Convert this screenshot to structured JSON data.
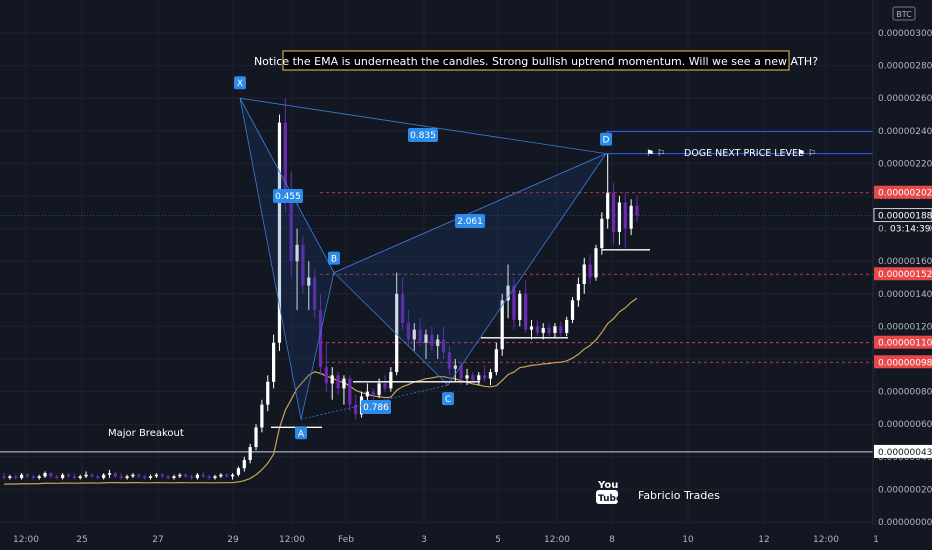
{
  "currency_badge": "BTC",
  "annotation": "Notice the EMA is underneath the candles. Strong bullish uptrend momentum. Will we see a new ATH?",
  "breakout_label": "Major Breakout",
  "target_label": "DOGE NEXT PRICE LEVEL",
  "watermark": {
    "youtube": "You",
    "tube": "Tube",
    "author": "Fabricio Trades"
  },
  "colors": {
    "bull": "#ffffff",
    "bear": "#6a2bb0",
    "ema": "#c8a25a",
    "pattern": "#3d7bd9",
    "level": "#e8484a",
    "price": "#2962ff"
  },
  "chart_data": {
    "type": "candlestick",
    "ylim": [
      0.0,
      3.15e-06
    ],
    "y_ticks": [
      "0.00000300",
      "0.00000280",
      "0.00000260",
      "0.00000240",
      "0.00000220",
      "0.00000200",
      "0.00000180",
      "0.00000160",
      "0.00000140",
      "0.00000120",
      "0.00000100",
      "0.00000080",
      "0.00000060",
      "0.00000040",
      "0.00000020",
      "0.00000000"
    ],
    "x_ticks": [
      "12:00",
      "25",
      "27",
      "29",
      "12:00",
      "Feb",
      "3",
      "5",
      "12:00",
      "8",
      "10",
      "12",
      "12:00",
      "1"
    ],
    "levels": [
      {
        "value": 2.02e-06,
        "label": "0.00000202",
        "style": "dashed-red"
      },
      {
        "value": 1.52e-06,
        "label": "0.00000152",
        "style": "dashed-red"
      },
      {
        "value": 1.1e-06,
        "label": "0.00000110",
        "style": "dashed-red"
      },
      {
        "value": 9.8e-07,
        "label": "0.00000098",
        "style": "dashed-red"
      },
      {
        "value": 4.3e-07,
        "label": "0.00000043",
        "style": "solid-white"
      }
    ],
    "current_price": {
      "value": 1.88e-06,
      "label": "0.00000188",
      "countdown": "03:14:39"
    },
    "pattern_points": [
      {
        "name": "X",
        "value": 2.6e-06
      },
      {
        "name": "A",
        "value": 6.3e-07
      },
      {
        "name": "B",
        "value": 1.53e-06
      },
      {
        "name": "C",
        "value": 8.4e-07
      },
      {
        "name": "D",
        "value": 2.26e-06
      }
    ],
    "ratios": [
      {
        "label": "0.455",
        "between": [
          "X",
          "B"
        ]
      },
      {
        "label": "0.786",
        "between": [
          "A",
          "C"
        ]
      },
      {
        "label": "2.061",
        "between": [
          "B",
          "D"
        ]
      },
      {
        "label": "0.835",
        "between": [
          "X",
          "D"
        ]
      }
    ],
    "candles": [
      [
        2.8e-07,
        3e-07,
        2.6e-07,
        2.7e-07
      ],
      [
        2.7e-07,
        2.9e-07,
        2.6e-07,
        2.8e-07
      ],
      [
        2.8e-07,
        2.9e-07,
        2.6e-07,
        2.7e-07
      ],
      [
        2.7e-07,
        3e-07,
        2.6e-07,
        2.9e-07
      ],
      [
        2.9e-07,
        3e-07,
        2.7e-07,
        2.8e-07
      ],
      [
        2.8e-07,
        2.9e-07,
        2.6e-07,
        2.7e-07
      ],
      [
        2.7e-07,
        2.9e-07,
        2.6e-07,
        2.8e-07
      ],
      [
        2.8e-07,
        3.1e-07,
        2.7e-07,
        3e-07
      ],
      [
        3e-07,
        3.1e-07,
        2.7e-07,
        2.8e-07
      ],
      [
        2.8e-07,
        2.9e-07,
        2.6e-07,
        2.7e-07
      ],
      [
        2.7e-07,
        3e-07,
        2.6e-07,
        2.9e-07
      ],
      [
        2.9e-07,
        3e-07,
        2.7e-07,
        2.8e-07
      ],
      [
        2.8e-07,
        3e-07,
        2.6e-07,
        2.7e-07
      ],
      [
        2.7e-07,
        2.9e-07,
        2.6e-07,
        2.8e-07
      ],
      [
        2.8e-07,
        3.1e-07,
        2.7e-07,
        2.9e-07
      ],
      [
        2.9e-07,
        3e-07,
        2.7e-07,
        2.8e-07
      ],
      [
        2.8e-07,
        2.9e-07,
        2.6e-07,
        2.7e-07
      ],
      [
        2.7e-07,
        3e-07,
        2.6e-07,
        2.9e-07
      ],
      [
        2.9e-07,
        3.2e-07,
        2.7e-07,
        3e-07
      ],
      [
        3e-07,
        3.1e-07,
        2.7e-07,
        2.8e-07
      ],
      [
        2.8e-07,
        3e-07,
        2.6e-07,
        2.7e-07
      ],
      [
        2.7e-07,
        2.9e-07,
        2.6e-07,
        2.8e-07
      ],
      [
        2.8e-07,
        3e-07,
        2.7e-07,
        2.9e-07
      ],
      [
        2.9e-07,
        3e-07,
        2.7e-07,
        2.8e-07
      ],
      [
        2.8e-07,
        2.9e-07,
        2.6e-07,
        2.7e-07
      ],
      [
        2.7e-07,
        2.9e-07,
        2.6e-07,
        2.8e-07
      ],
      [
        2.8e-07,
        3e-07,
        2.7e-07,
        2.9e-07
      ],
      [
        2.9e-07,
        3e-07,
        2.7e-07,
        2.8e-07
      ],
      [
        2.8e-07,
        2.9e-07,
        2.6e-07,
        2.7e-07
      ],
      [
        2.7e-07,
        2.9e-07,
        2.6e-07,
        2.8e-07
      ],
      [
        2.8e-07,
        3e-07,
        2.7e-07,
        2.9e-07
      ],
      [
        2.9e-07,
        3e-07,
        2.7e-07,
        2.8e-07
      ],
      [
        2.8e-07,
        2.9e-07,
        2.6e-07,
        2.7e-07
      ],
      [
        2.7e-07,
        3e-07,
        2.6e-07,
        2.9e-07
      ],
      [
        2.9e-07,
        3.1e-07,
        2.7e-07,
        2.8e-07
      ],
      [
        2.8e-07,
        2.9e-07,
        2.6e-07,
        2.7e-07
      ],
      [
        2.7e-07,
        2.9e-07,
        2.6e-07,
        2.8e-07
      ],
      [
        2.8e-07,
        3e-07,
        2.7e-07,
        2.9e-07
      ],
      [
        2.9e-07,
        3e-07,
        2.7e-07,
        2.8e-07
      ],
      [
        2.8e-07,
        3e-07,
        2.6e-07,
        2.9e-07
      ],
      [
        2.9e-07,
        3.4e-07,
        2.8e-07,
        3.3e-07
      ],
      [
        3.3e-07,
        4e-07,
        3.1e-07,
        3.8e-07
      ],
      [
        3.8e-07,
        4.8e-07,
        3.6e-07,
        4.6e-07
      ],
      [
        4.6e-07,
        6e-07,
        4.4e-07,
        5.8e-07
      ],
      [
        5.8e-07,
        7.5e-07,
        5.5e-07,
        7.2e-07
      ],
      [
        7.2e-07,
        9e-07,
        6.8e-07,
        8.6e-07
      ],
      [
        8.6e-07,
        1.15e-06,
        8.2e-07,
        1.1e-06
      ],
      [
        1.1e-06,
        2.5e-06,
        1.05e-06,
        2.45e-06
      ],
      [
        2.45e-06,
        2.6e-06,
        1.9e-06,
        2e-06
      ],
      [
        2e-06,
        2.15e-06,
        1.5e-06,
        1.6e-06
      ],
      [
        1.6e-06,
        1.8e-06,
        1.3e-06,
        1.7e-06
      ],
      [
        1.7e-06,
        1.75e-06,
        1.4e-06,
        1.45e-06
      ],
      [
        1.45e-06,
        1.6e-06,
        1.3e-06,
        1.5e-06
      ],
      [
        1.5e-06,
        1.55e-06,
        1.25e-06,
        1.3e-06
      ],
      [
        1.3e-06,
        1.4e-06,
        9e-07,
        9.5e-07
      ],
      [
        9.5e-07,
        1.1e-06,
        8e-07,
        8.5e-07
      ],
      [
        8.5e-07,
        9.5e-07,
        7.5e-07,
        9e-07
      ],
      [
        9e-07,
        9.2e-07,
        7.8e-07,
        8.2e-07
      ],
      [
        8.2e-07,
        9e-07,
        7.2e-07,
        8.8e-07
      ],
      [
        8.8e-07,
        9e-07,
        6.8e-07,
        7.2e-07
      ],
      [
        7.2e-07,
        7.8e-07,
        6.3e-07,
        6.6e-07
      ],
      [
        6.6e-07,
        8e-07,
        6.4e-07,
        7.7e-07
      ],
      [
        7.7e-07,
        8.5e-07,
        7.2e-07,
        8e-07
      ],
      [
        8e-07,
        8.2e-07,
        7.4e-07,
        7.8e-07
      ],
      [
        7.8e-07,
        8.8e-07,
        7.6e-07,
        8.5e-07
      ],
      [
        8.5e-07,
        9e-07,
        8e-07,
        8.2e-07
      ],
      [
        8.2e-07,
        9.5e-07,
        8e-07,
        9.2e-07
      ],
      [
        9.2e-07,
        1.53e-06,
        9e-07,
        1.4e-06
      ],
      [
        1.4e-06,
        1.5e-06,
        1.18e-06,
        1.22e-06
      ],
      [
        1.22e-06,
        1.3e-06,
        1.08e-06,
        1.12e-06
      ],
      [
        1.12e-06,
        1.22e-06,
        1.05e-06,
        1.18e-06
      ],
      [
        1.18e-06,
        1.25e-06,
        1.08e-06,
        1.1e-06
      ],
      [
        1.1e-06,
        1.18e-06,
        1e-06,
        1.15e-06
      ],
      [
        1.15e-06,
        1.2e-06,
        1.05e-06,
        1.08e-06
      ],
      [
        1.08e-06,
        1.15e-06,
        1e-06,
        1.12e-06
      ],
      [
        1.12e-06,
        1.2e-06,
        1e-06,
        1.04e-06
      ],
      [
        1.04e-06,
        1.08e-06,
        9e-07,
        9.4e-07
      ],
      [
        9.4e-07,
        1e-06,
        8.6e-07,
        9.6e-07
      ],
      [
        9.6e-07,
        9.8e-07,
        8.4e-07,
        8.8e-07
      ],
      [
        8.8e-07,
        9.4e-07,
        8.4e-07,
        9e-07
      ],
      [
        9e-07,
        9.2e-07,
        8.5e-07,
        8.7e-07
      ],
      [
        8.7e-07,
        9.2e-07,
        8.4e-07,
        9e-07
      ],
      [
        9e-07,
        9.6e-07,
        8.6e-07,
        8.8e-07
      ],
      [
        8.8e-07,
        9.4e-07,
        8.4e-07,
        9.2e-07
      ],
      [
        9.2e-07,
        1.1e-06,
        9e-07,
        1.06e-06
      ],
      [
        1.06e-06,
        1.4e-06,
        1.02e-06,
        1.36e-06
      ],
      [
        1.36e-06,
        1.58e-06,
        1.25e-06,
        1.45e-06
      ],
      [
        1.45e-06,
        1.5e-06,
        1.18e-06,
        1.24e-06
      ],
      [
        1.24e-06,
        1.42e-06,
        1.2e-06,
        1.4e-06
      ],
      [
        1.4e-06,
        1.48e-06,
        1.16e-06,
        1.18e-06
      ],
      [
        1.18e-06,
        1.24e-06,
        1.12e-06,
        1.2e-06
      ],
      [
        1.2e-06,
        1.24e-06,
        1.14e-06,
        1.16e-06
      ],
      [
        1.16e-06,
        1.22e-06,
        1.12e-06,
        1.19e-06
      ],
      [
        1.19e-06,
        1.22e-06,
        1.14e-06,
        1.16e-06
      ],
      [
        1.16e-06,
        1.22e-06,
        1.13e-06,
        1.2e-06
      ],
      [
        1.2e-06,
        1.23e-06,
        1.14e-06,
        1.16e-06
      ],
      [
        1.16e-06,
        1.26e-06,
        1.14e-06,
        1.24e-06
      ],
      [
        1.24e-06,
        1.38e-06,
        1.22e-06,
        1.36e-06
      ],
      [
        1.36e-06,
        1.5e-06,
        1.32e-06,
        1.46e-06
      ],
      [
        1.46e-06,
        1.62e-06,
        1.4e-06,
        1.58e-06
      ],
      [
        1.58e-06,
        1.64e-06,
        1.46e-06,
        1.5e-06
      ],
      [
        1.5e-06,
        1.7e-06,
        1.48e-06,
        1.68e-06
      ],
      [
        1.68e-06,
        1.9e-06,
        1.64e-06,
        1.86e-06
      ],
      [
        1.86e-06,
        2.26e-06,
        1.8e-06,
        2.02e-06
      ],
      [
        2.02e-06,
        2.08e-06,
        1.7e-06,
        1.78e-06
      ],
      [
        1.78e-06,
        2e-06,
        1.7e-06,
        1.96e-06
      ],
      [
        1.96e-06,
        2.02e-06,
        1.68e-06,
        1.8e-06
      ],
      [
        1.8e-06,
        1.98e-06,
        1.76e-06,
        1.94e-06
      ],
      [
        1.94e-06,
        2e-06,
        1.84e-06,
        1.88e-06
      ]
    ]
  }
}
